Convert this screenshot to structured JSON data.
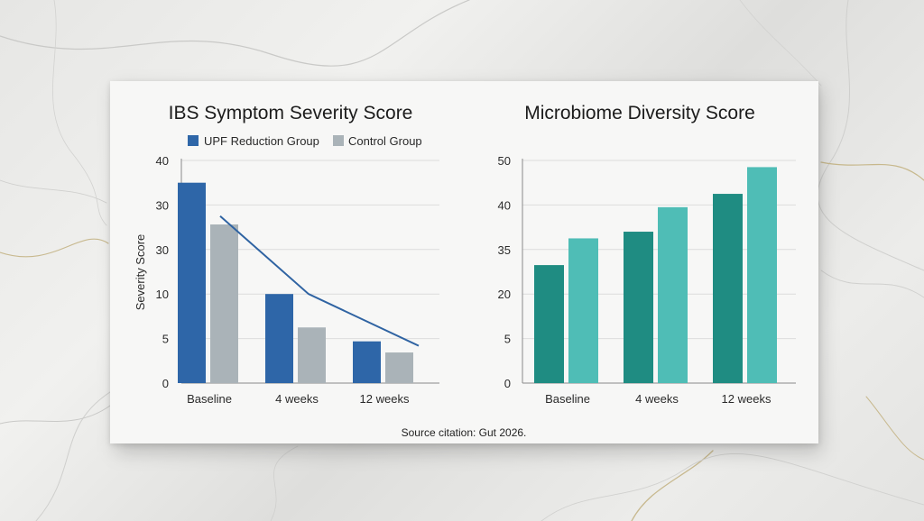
{
  "source_text": "Source citation: Gut 2026.",
  "colors": {
    "upf": "#2e66a8",
    "control": "#aab3b8",
    "teal_dark": "#1f8c82",
    "teal_light": "#4fbdb6",
    "trend": "#2f63a2"
  },
  "chart_data": [
    {
      "type": "bar",
      "title": "IBS Symptom Severity Score",
      "ylabel": "Severity Score",
      "xlabel": "",
      "categories": [
        "Baseline",
        "4 weeks",
        "12 weeks"
      ],
      "y_ticks": [
        "0",
        "5",
        "10",
        "30",
        "30",
        "40"
      ],
      "series": [
        {
          "name": "UPF Reduction Group",
          "values": [
            36,
            16,
            7.5
          ]
        },
        {
          "name": "Control Group",
          "values": [
            28.5,
            10,
            5.5
          ]
        }
      ],
      "trend_line": [
        30,
        16,
        6.7
      ],
      "legend_position": "top",
      "grid": true
    },
    {
      "type": "bar",
      "title": "Microbiome Diversity Score",
      "ylabel": "",
      "xlabel": "",
      "categories": [
        "Baseline",
        "4 weeks",
        "12 weeks"
      ],
      "y_ticks": [
        "0",
        "5",
        "20",
        "35",
        "40",
        "50"
      ],
      "series": [
        {
          "values": [
            26.5,
            34,
            42.5
          ]
        },
        {
          "values": [
            32.5,
            39.5,
            48.5
          ]
        }
      ],
      "grid": true
    }
  ]
}
